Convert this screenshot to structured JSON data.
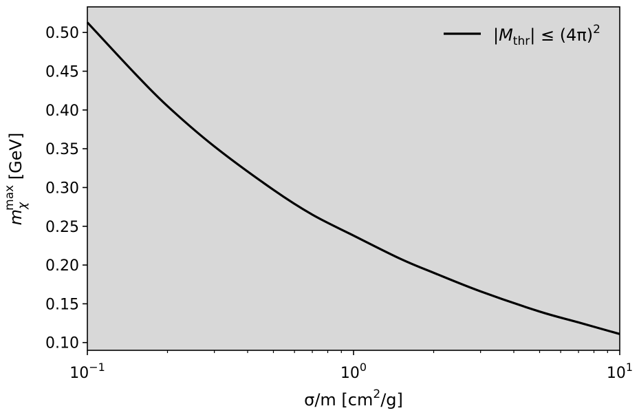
{
  "chart_data": {
    "type": "line",
    "xscale": "log",
    "xlim": [
      0.1,
      10
    ],
    "ylim": [
      0.09,
      0.533
    ],
    "x_ticks": [
      {
        "value": 0.1,
        "base": "10",
        "exp": "−1"
      },
      {
        "value": 1,
        "base": "10",
        "exp": "0"
      },
      {
        "value": 10,
        "base": "10",
        "exp": "1"
      }
    ],
    "y_ticks": [
      "0.10",
      "0.15",
      "0.20",
      "0.25",
      "0.30",
      "0.35",
      "0.40",
      "0.45",
      "0.50"
    ],
    "xlabel": {
      "main": "σ/m [cm",
      "sup": "2",
      "tail": "/g]"
    },
    "ylabel": {
      "main": "m",
      "sub": "χ",
      "sup": "max",
      "tail": " [GeV]"
    },
    "legend": {
      "position": "top-right",
      "label": {
        "pre": "|M",
        "sub": "thr",
        "post": "| ≤ (4π)",
        "sup": "2"
      }
    },
    "series": [
      {
        "color": "#000000",
        "x": [
          0.1,
          0.15,
          0.2,
          0.3,
          0.5,
          0.7,
          1.0,
          1.5,
          2.0,
          3.0,
          5.0,
          7.0,
          10.0
        ],
        "y": [
          0.513,
          0.448,
          0.405,
          0.353,
          0.297,
          0.265,
          0.238,
          0.208,
          0.19,
          0.166,
          0.14,
          0.126,
          0.111
        ]
      }
    ],
    "plot_background": "#d8d8d8",
    "grid": false
  }
}
